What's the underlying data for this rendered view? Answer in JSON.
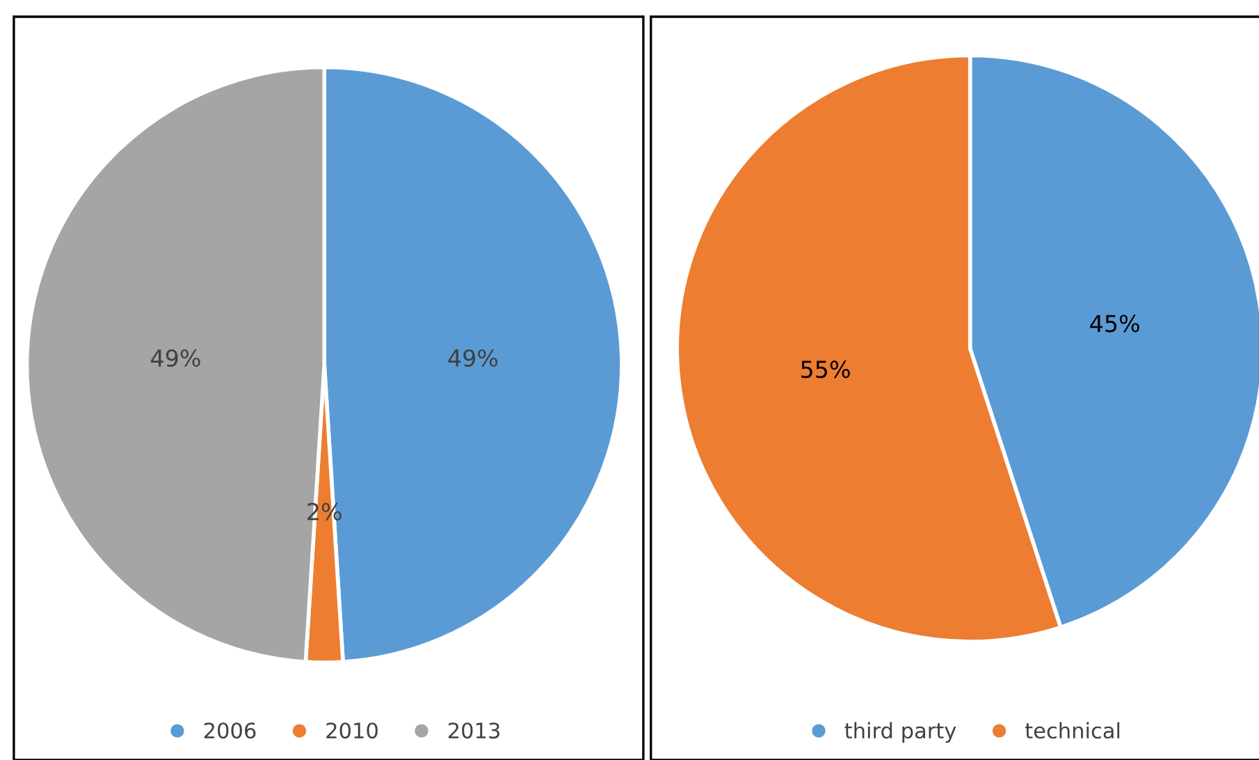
{
  "chart_data": [
    {
      "type": "pie",
      "categories": [
        "2006",
        "2010",
        "2013"
      ],
      "values": [
        49,
        2,
        49
      ],
      "colors": [
        "#5b9bd5",
        "#ed7d31",
        "#a5a5a5"
      ],
      "value_labels": [
        "49%",
        "2%",
        "49%"
      ],
      "legend": "bottom"
    },
    {
      "type": "pie",
      "categories": [
        "third party",
        "technical"
      ],
      "values": [
        45,
        55
      ],
      "colors": [
        "#5b9bd5",
        "#ed7d31"
      ],
      "value_labels": [
        "45%",
        "55%"
      ],
      "legend": "bottom"
    }
  ]
}
